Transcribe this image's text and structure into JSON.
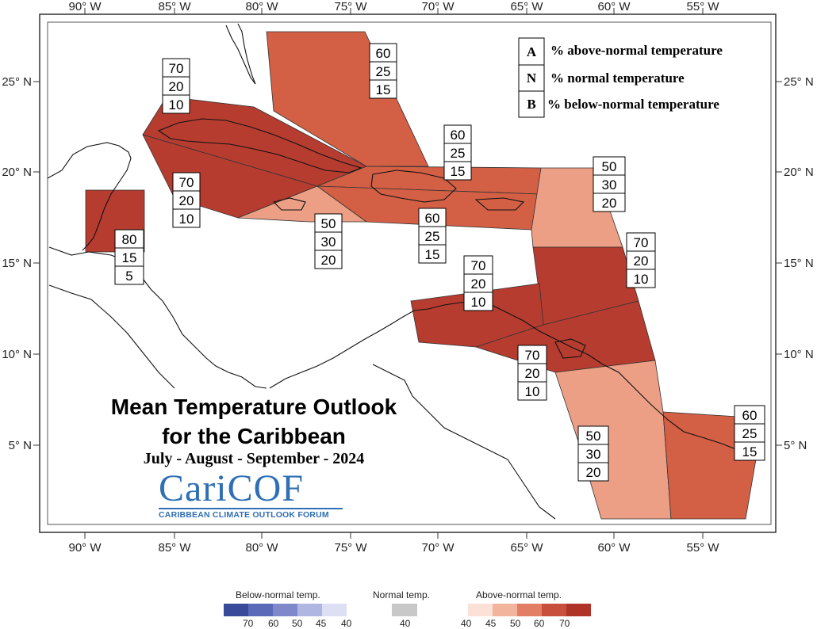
{
  "map": {
    "lon_ticks": [
      "90° W",
      "85° W",
      "80° W",
      "75° W",
      "70° W",
      "65° W",
      "60° W",
      "55° W"
    ],
    "lat_ticks": [
      "25° N",
      "20° N",
      "15° N",
      "10° N",
      "5° N"
    ],
    "regions": [
      {
        "id": "bahamas",
        "A": "60",
        "N": "25",
        "B": "15",
        "fill": "#d35f45"
      },
      {
        "id": "cuba-west",
        "A": "70",
        "N": "20",
        "B": "10",
        "fill": "#b63c30"
      },
      {
        "id": "cuba-east",
        "A": "70",
        "N": "20",
        "B": "10",
        "fill": "#b63c30"
      },
      {
        "id": "jamaica",
        "A": "50",
        "N": "30",
        "B": "20",
        "fill": "#ec9f85"
      },
      {
        "id": "hispaniola-north",
        "A": "60",
        "N": "25",
        "B": "15",
        "fill": "#d35f45"
      },
      {
        "id": "hispaniola-south",
        "A": "60",
        "N": "25",
        "B": "15",
        "fill": "#d35f45"
      },
      {
        "id": "leeward",
        "A": "50",
        "N": "30",
        "B": "20",
        "fill": "#ec9f85"
      },
      {
        "id": "windward",
        "A": "70",
        "N": "20",
        "B": "10",
        "fill": "#b63c30"
      },
      {
        "id": "belize",
        "A": "80",
        "N": "15",
        "B": "5",
        "fill": "#b63c30"
      },
      {
        "id": "abc-islands",
        "A": "70",
        "N": "20",
        "B": "10",
        "fill": "#b63c30"
      },
      {
        "id": "trinidad",
        "A": "70",
        "N": "20",
        "B": "10",
        "fill": "#b63c30"
      },
      {
        "id": "guyana",
        "A": "50",
        "N": "30",
        "B": "20",
        "fill": "#ec9f85"
      },
      {
        "id": "suriname-guiana",
        "A": "60",
        "N": "25",
        "B": "15",
        "fill": "#d35f45"
      }
    ]
  },
  "legend": {
    "A": {
      "letter": "A",
      "text": "% above-normal temperature"
    },
    "N": {
      "letter": "N",
      "text": "% normal temperature"
    },
    "B": {
      "letter": "B",
      "text": "% below-normal temperature"
    }
  },
  "title": {
    "line1": "Mean Temperature Outlook",
    "line2": "for the Caribbean",
    "period": "July - August - September - 2024"
  },
  "logo": {
    "word": "CariCOF",
    "subtitle": "CARIBBEAN CLIMATE OUTLOOK FORUM"
  },
  "colorbar": {
    "below_label": "Below-normal temp.",
    "normal_label": "Normal temp.",
    "above_label": "Above-normal temp.",
    "below_colors": [
      "#3a4a9a",
      "#5a6ab8",
      "#8088cc",
      "#b0b6e2",
      "#dde0f4"
    ],
    "below_ticks": [
      "70",
      "60",
      "50",
      "45",
      "40"
    ],
    "normal_color": "#c8c8c8",
    "normal_ticks": [
      "40"
    ],
    "above_colors": [
      "#fbe1d6",
      "#f2b49c",
      "#e27e63",
      "#c84f3b",
      "#b03328"
    ],
    "above_ticks": [
      "40",
      "45",
      "50",
      "60",
      "70"
    ]
  }
}
